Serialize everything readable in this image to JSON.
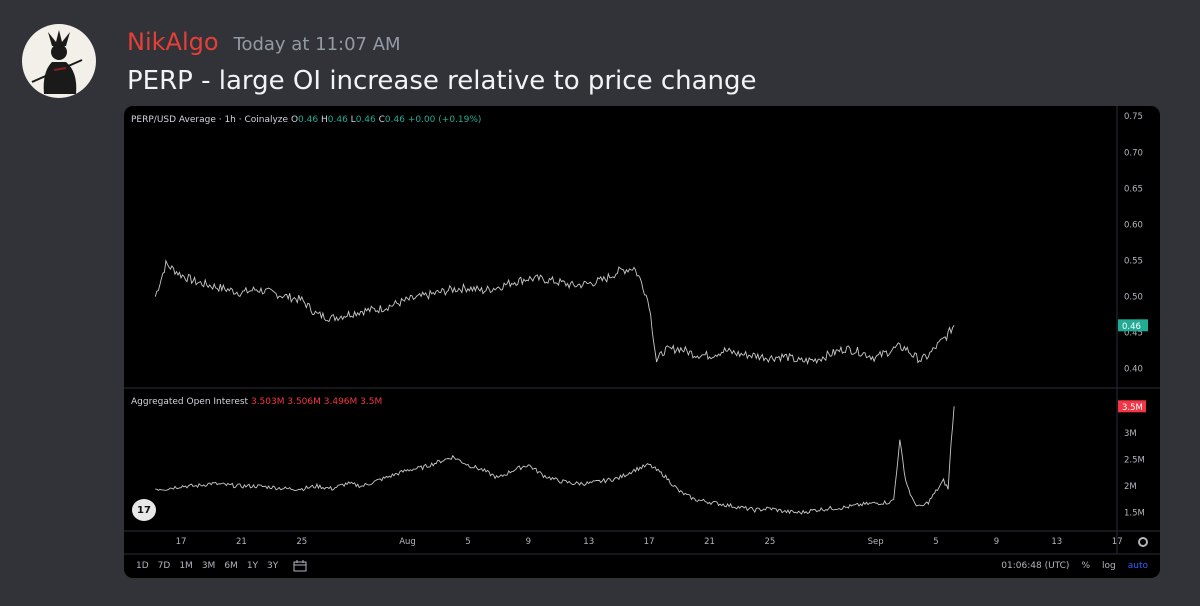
{
  "message": {
    "author": "NikAlgo",
    "timestamp": "Today at 11:07 AM",
    "text": "PERP - large OI increase relative to price change",
    "author_color": "#e53f37"
  },
  "chart_header": {
    "symbol": "PERP/USD Average · 1h · Coinalyze",
    "o_label": "O",
    "o": "0.46",
    "h_label": "H",
    "h": "0.46",
    "l_label": "L",
    "l": "0.46",
    "c_label": "C",
    "c": "0.46",
    "change": "+0.00 (+0.19%)"
  },
  "oi_header": {
    "title": "Aggregated Open Interest",
    "v1": "3.503M",
    "v2": "3.506M",
    "v3": "3.496M",
    "v4": "3.5M"
  },
  "price_axis": {
    "ticks": [
      "0.75",
      "0.70",
      "0.65",
      "0.60",
      "0.55",
      "0.50",
      "0.45",
      "0.40"
    ],
    "current": "0.46",
    "current_color": "#22ab94"
  },
  "oi_axis": {
    "ticks": [
      "3M",
      "2.5M",
      "2M",
      "1.5M"
    ],
    "current": "3.5M",
    "current_color": "#f23645"
  },
  "time_axis": [
    "17",
    "21",
    "25",
    "Aug",
    "5",
    "9",
    "13",
    "17",
    "21",
    "25",
    "Sep",
    "5",
    "9",
    "13",
    "17"
  ],
  "bottom_bar": {
    "ranges": [
      "1D",
      "7D",
      "1M",
      "3M",
      "6M",
      "1Y",
      "3Y"
    ],
    "clock": "01:06:48 (UTC)",
    "percent": "%",
    "log": "log",
    "auto": "auto"
  },
  "tv_logo": "17",
  "chart_data": [
    {
      "type": "line",
      "title": "PERP/USD Average · 1h · Coinalyze",
      "ylim": [
        0.38,
        0.76
      ],
      "x_days": [
        15.3,
        16,
        17,
        18,
        19,
        20,
        21,
        22,
        23,
        24,
        25,
        26,
        27,
        28,
        29,
        30,
        31,
        32,
        33,
        34,
        35,
        36,
        37,
        38,
        39,
        40,
        41,
        42,
        43,
        44,
        45,
        46,
        47,
        47.5,
        48,
        48.5,
        49,
        50,
        51,
        52,
        53,
        54,
        55,
        56,
        57,
        58,
        59,
        60,
        61,
        62,
        63,
        64,
        64.5,
        65,
        65.5,
        66,
        66.5,
        67,
        67.7,
        68.2
      ],
      "values": [
        0.5,
        0.545,
        0.53,
        0.52,
        0.515,
        0.51,
        0.505,
        0.51,
        0.505,
        0.5,
        0.495,
        0.475,
        0.47,
        0.475,
        0.48,
        0.482,
        0.488,
        0.495,
        0.5,
        0.505,
        0.51,
        0.512,
        0.508,
        0.513,
        0.52,
        0.525,
        0.524,
        0.52,
        0.515,
        0.518,
        0.523,
        0.535,
        0.54,
        0.52,
        0.49,
        0.41,
        0.425,
        0.428,
        0.42,
        0.418,
        0.425,
        0.42,
        0.418,
        0.415,
        0.417,
        0.41,
        0.412,
        0.42,
        0.428,
        0.423,
        0.415,
        0.425,
        0.43,
        0.428,
        0.418,
        0.412,
        0.418,
        0.43,
        0.445,
        0.46
      ]
    },
    {
      "type": "line",
      "title": "Aggregated Open Interest",
      "ylim": [
        1.25,
        3.75
      ],
      "x_days": [
        15.3,
        16,
        17,
        18,
        19,
        20,
        21,
        22,
        23,
        24,
        25,
        26,
        27,
        28,
        29,
        30,
        31,
        32,
        33,
        34,
        35,
        36,
        37,
        38,
        39,
        40,
        41,
        42,
        43,
        44,
        45,
        46,
        47,
        48,
        49,
        50,
        51,
        52,
        53,
        54,
        55,
        56,
        57,
        58,
        59,
        60,
        61,
        62,
        63,
        64,
        64.2,
        64.6,
        65,
        65.5,
        66,
        66.5,
        67,
        67.5,
        67.8,
        68.0,
        68.2
      ],
      "values": [
        1.95,
        1.95,
        2.0,
        2.0,
        2.05,
        2.02,
        2.0,
        2.0,
        1.98,
        1.95,
        1.95,
        2.0,
        1.95,
        2.05,
        2.0,
        2.1,
        2.2,
        2.3,
        2.35,
        2.45,
        2.55,
        2.4,
        2.3,
        2.15,
        2.3,
        2.4,
        2.2,
        2.1,
        2.05,
        2.05,
        2.1,
        2.15,
        2.3,
        2.4,
        2.2,
        1.9,
        1.75,
        1.7,
        1.65,
        1.6,
        1.55,
        1.58,
        1.52,
        1.5,
        1.55,
        1.58,
        1.6,
        1.65,
        1.68,
        1.7,
        1.75,
        2.85,
        2.1,
        1.7,
        1.6,
        1.7,
        1.9,
        2.1,
        1.95,
        2.8,
        3.5
      ]
    }
  ]
}
